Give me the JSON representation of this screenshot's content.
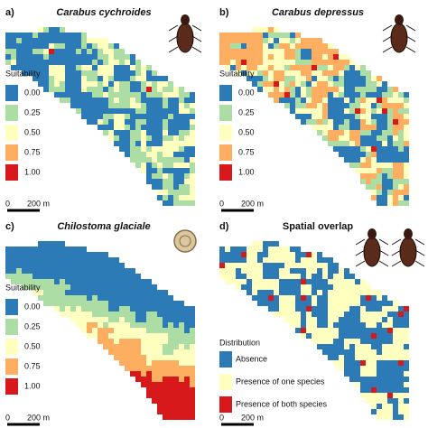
{
  "panels": [
    {
      "label": "a)",
      "title": "Carabus cychroides",
      "legend": {
        "title": "Suitability",
        "items": [
          "0.00",
          "0.25",
          "0.50",
          "0.75",
          "1.00"
        ]
      },
      "scale": {
        "start": "0",
        "length": "200 m"
      }
    },
    {
      "label": "b)",
      "title": "Carabus depressus",
      "legend": {
        "title": "Suitability",
        "items": [
          "0.00",
          "0.25",
          "0.50",
          "0.75",
          "1.00"
        ]
      },
      "scale": {
        "start": "0",
        "length": "200 m"
      }
    },
    {
      "label": "c)",
      "title": "Chilostoma glaciale",
      "legend": {
        "title": "Suitability",
        "items": [
          "0.00",
          "0.25",
          "0.50",
          "0.75",
          "1.00"
        ]
      },
      "scale": {
        "start": "0",
        "length": "200 m"
      }
    },
    {
      "label": "d)",
      "title": "Spatial overlap",
      "legend": {
        "title": "Distribution",
        "items": [
          "Absence",
          "Presence of one species",
          "Presence of both species"
        ]
      },
      "scale": {
        "start": "0",
        "length": "200 m"
      }
    }
  ]
}
